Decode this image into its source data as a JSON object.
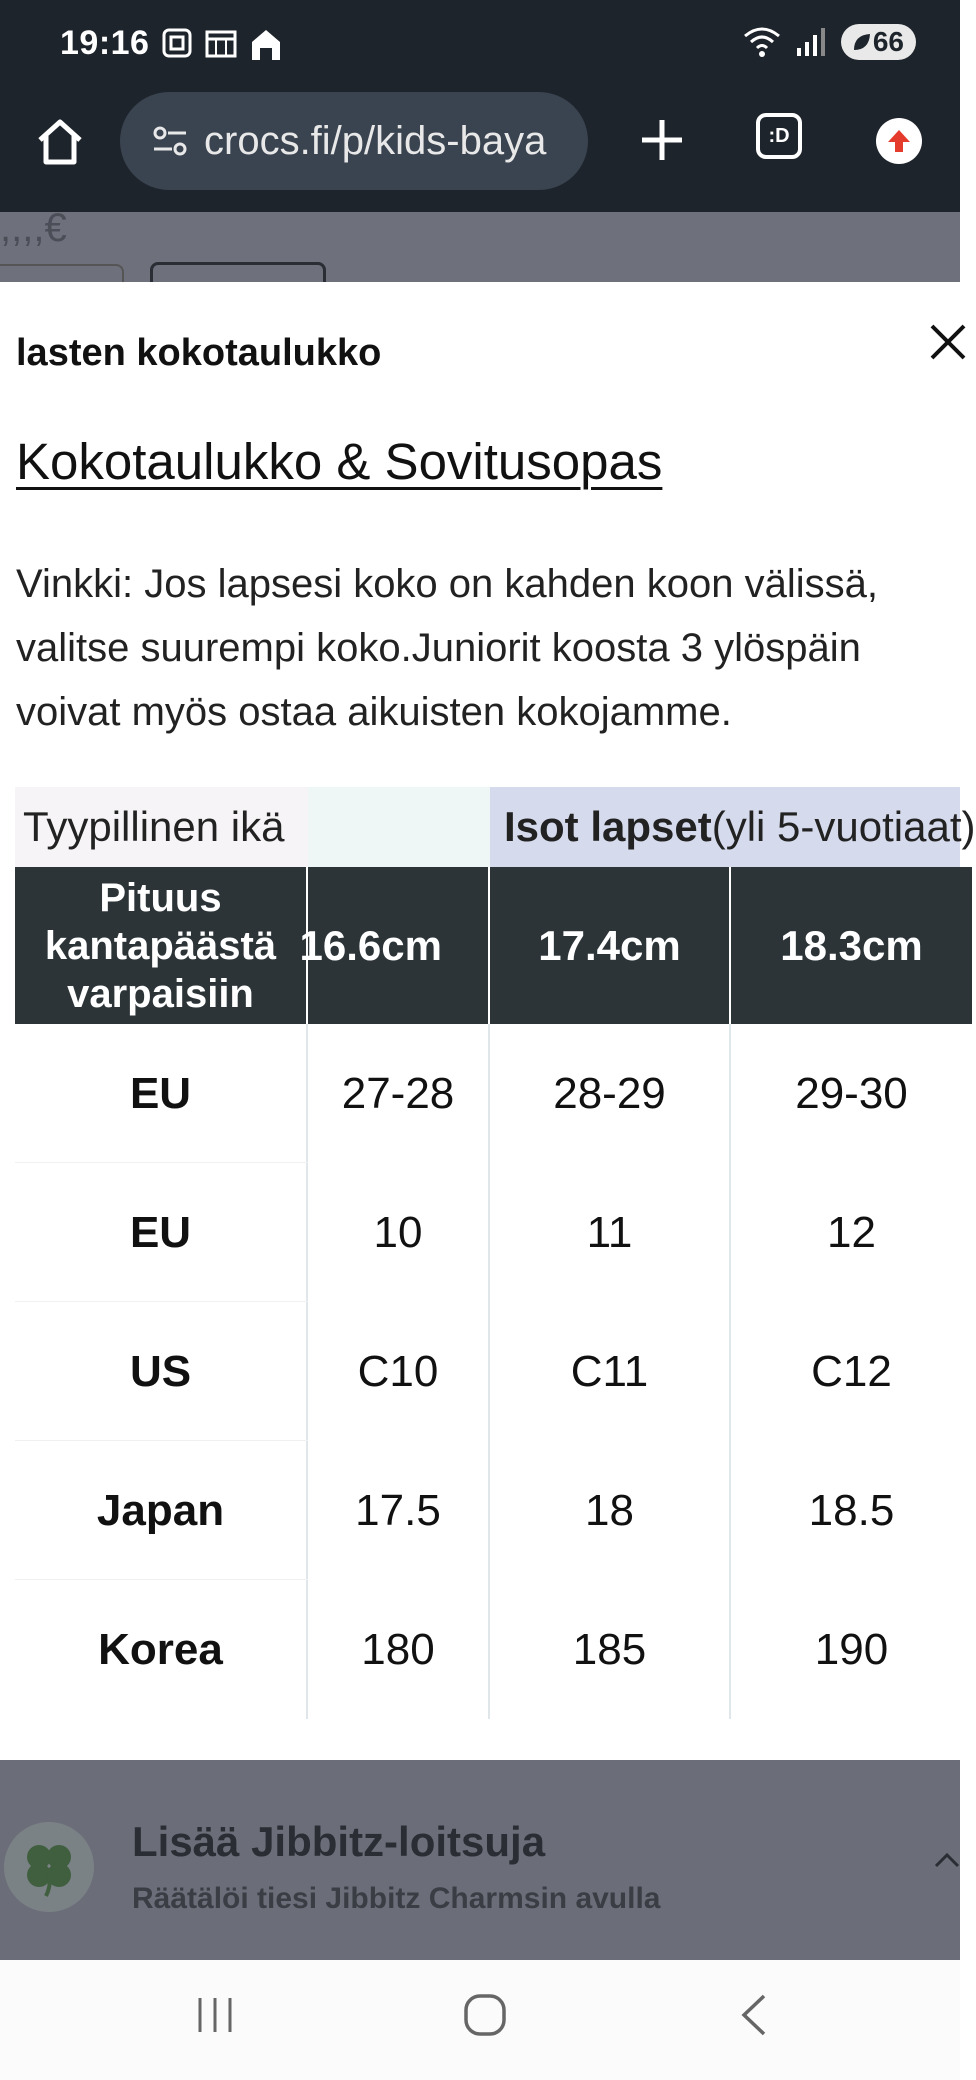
{
  "status_bar": {
    "time": "19:16",
    "battery": "66",
    "icons": [
      "screenshot-icon",
      "calendar-icon",
      "home-status-icon",
      "wifi-icon",
      "signal-icon",
      "battery-icon"
    ]
  },
  "browser": {
    "url": "crocs.fi/p/kids-baya",
    "buttons": [
      "home-icon",
      "new-tab-plus-icon",
      "tab-switcher-icon",
      "update-arrow-icon"
    ],
    "tab_switcher_label": ":D"
  },
  "behind_page": {
    "fragment_text": ",,,,€"
  },
  "modal": {
    "title": "lasten kokotaulukko",
    "link": "Kokotaulukko & Sovitusopas",
    "tip_lines": [
      "Vinkki: Jos lapsesi koko on kahden koon välissä,",
      "valitse suurempi koko.Juniorit koosta 3 ylöspäin",
      "voivat myös ostaa aikuisten kokojamme."
    ],
    "table": {
      "age_row": {
        "label": "Tyypillinen ikä",
        "mid": "",
        "group_bold": "Isot lapset",
        "group_rest": " (yli 5-vuotiaat)"
      },
      "header": {
        "label_lines": [
          "Pituus",
          "kantapäästä",
          "varpaisiin"
        ],
        "columns": [
          "16.6cm",
          "17.4cm",
          "18.3cm"
        ]
      },
      "rows": [
        {
          "label": "EU",
          "values": [
            "27-28",
            "28-29",
            "29-30"
          ]
        },
        {
          "label": "EU",
          "values": [
            "10",
            "11",
            "12"
          ]
        },
        {
          "label": "US",
          "values": [
            "C10",
            "C11",
            "C12"
          ]
        },
        {
          "label": "Japan",
          "values": [
            "17.5",
            "18",
            "18.5"
          ]
        },
        {
          "label": "Korea",
          "values": [
            "180",
            "185",
            "190"
          ]
        }
      ]
    }
  },
  "bottom_panel": {
    "title": "Lisää Jibbitz-loitsuja",
    "subtitle": "Räätälöi tiesi Jibbitz Charmsin avulla"
  },
  "nav": {
    "buttons": [
      "recents-icon",
      "home-nav-icon",
      "back-icon"
    ]
  }
}
